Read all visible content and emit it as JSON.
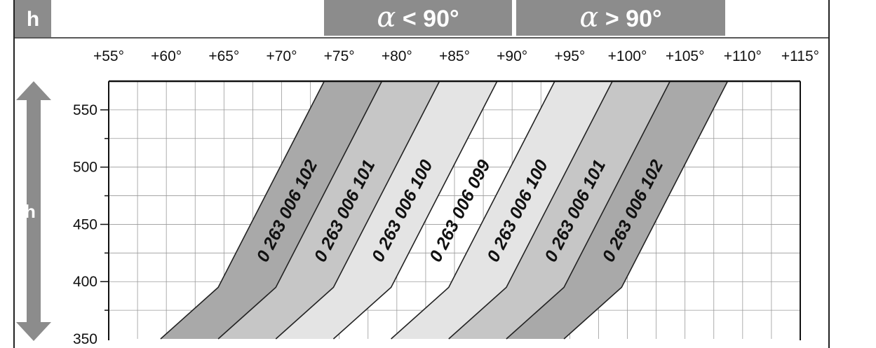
{
  "header": {
    "h_badge": "h",
    "alpha_symbol": "α",
    "alpha_less": " < 90°",
    "alpha_greater": " > 90°"
  },
  "chart_data": {
    "type": "area",
    "title": "",
    "xlabel": "",
    "ylabel": "h",
    "xlim": [
      55,
      115
    ],
    "ylim": [
      350,
      575
    ],
    "grid": true,
    "x_ticks": [
      "+55°",
      "+60°",
      "+65°",
      "+70°",
      "+75°",
      "+80°",
      "+85°",
      "+90°",
      "+95°",
      "+100°",
      "+105°",
      "+110°",
      "+115°"
    ],
    "x_tick_values": [
      55,
      60,
      65,
      70,
      75,
      80,
      85,
      90,
      95,
      100,
      105,
      110,
      115
    ],
    "y_ticks": [
      "350",
      "400",
      "450",
      "500",
      "550"
    ],
    "y_tick_values": [
      350,
      400,
      450,
      500,
      550
    ],
    "colors": {
      "dark": "#a9a9a9",
      "medium": "#c6c6c6",
      "light": "#e4e4e4",
      "header": "#8c8c8c",
      "arrow": "#8c8c8c",
      "line": "#222222"
    },
    "boundaries": [
      {
        "x_at_350": 59.5,
        "x_at_395": 64.5,
        "x_at_575": 73.7
      },
      {
        "x_at_350": 64.5,
        "x_at_395": 69.5,
        "x_at_575": 78.7
      },
      {
        "x_at_350": 69.5,
        "x_at_395": 74.5,
        "x_at_575": 83.7
      },
      {
        "x_at_350": 74.5,
        "x_at_395": 79.5,
        "x_at_575": 88.7
      },
      {
        "x_at_350": 79.5,
        "x_at_395": 84.5,
        "x_at_575": 93.7
      },
      {
        "x_at_350": 84.5,
        "x_at_395": 89.5,
        "x_at_575": 98.7
      },
      {
        "x_at_350": 89.5,
        "x_at_395": 94.5,
        "x_at_575": 103.7
      },
      {
        "x_at_350": 94.5,
        "x_at_395": 99.5,
        "x_at_575": 108.7
      }
    ],
    "bands": [
      {
        "label": "0 263 006 102",
        "fill": "dark"
      },
      {
        "label": "0 263 006 101",
        "fill": "medium"
      },
      {
        "label": "0 263 006 100",
        "fill": "light"
      },
      {
        "label": "0 263 006 099",
        "fill": "none"
      },
      {
        "label": "0 263 006 100",
        "fill": "light"
      },
      {
        "label": "0 263 006 101",
        "fill": "medium"
      },
      {
        "label": "0 263 006 102",
        "fill": "dark"
      }
    ]
  }
}
